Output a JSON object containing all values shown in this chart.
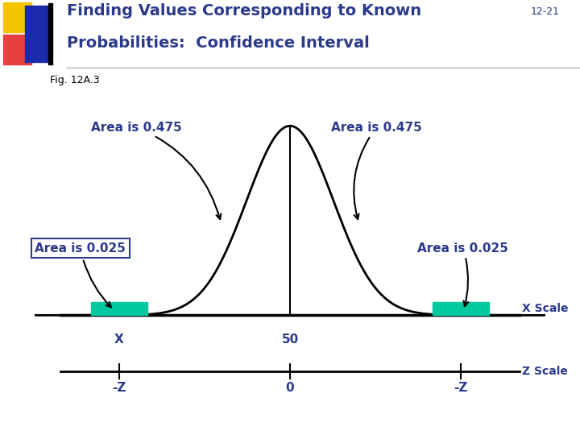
{
  "title_line1": "Finding Values Corresponding to Known",
  "title_line2": "Probabilities:  Confidence Interval",
  "slide_num": "12-21",
  "fig_label": "Fig. 12A.3",
  "title_color": "#2B3A8B",
  "slide_num_color": "#2B3A8B",
  "fig_label_color": "#000000",
  "body_bg": "#FFFFFF",
  "teal_color": "#00C9A0",
  "text_color": "#2B3A8B",
  "curve_color": "#000000",
  "axis_color": "#000000",
  "box_edge_color": "#2B3A8B",
  "area_475_left_text": "Area is 0.475",
  "area_475_right_text": "Area is 0.475",
  "area_025_left_text": "Area is 0.025",
  "area_025_right_text": "Area is 0.025",
  "x_scale_label": "X Scale",
  "z_scale_label": "Z Scale",
  "x_tick_left": "X",
  "x_tick_center": "50",
  "z_tick_left": "-Z",
  "z_tick_center": "0",
  "z_tick_right": "-Z",
  "logo_yellow": "#F5C400",
  "logo_red": "#E84040",
  "logo_blue": "#1A2AAA",
  "divider_color": "#AAAAAA",
  "title_fontsize": 14,
  "slide_num_fontsize": 9,
  "body_fontsize": 10,
  "area_fontsize": 11
}
